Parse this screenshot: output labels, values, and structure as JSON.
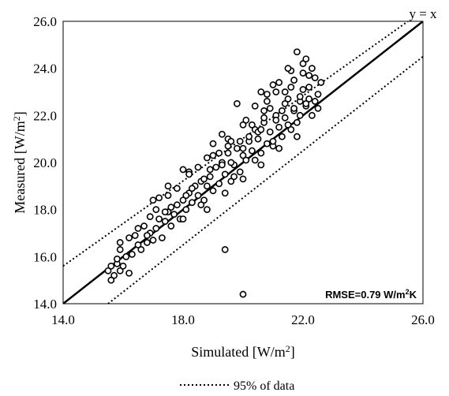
{
  "chart_data": {
    "type": "scatter",
    "xlabel": "Simulated [W/m",
    "xlabel_sup": "2",
    "xlabel_end": "]",
    "ylabel": "Measured [W/m",
    "ylabel_sup": "2",
    "ylabel_end": "]",
    "xlim": [
      14.0,
      26.0
    ],
    "ylim": [
      14.0,
      26.0
    ],
    "xticks": [
      "14.0",
      "18.0",
      "22.0",
      "26.0"
    ],
    "yticks": [
      "14.0",
      "16.0",
      "18.0",
      "20.0",
      "22.0",
      "24.0",
      "26.0"
    ],
    "grid": "none",
    "identity_line": {
      "label": "y = x",
      "from": [
        14.0,
        14.0
      ],
      "to": [
        26.0,
        26.0
      ]
    },
    "band_lines": [
      {
        "from": [
          14.0,
          15.6
        ],
        "to": [
          25.5,
          26.0
        ]
      },
      {
        "from": [
          15.5,
          14.0
        ],
        "to": [
          26.0,
          24.5
        ]
      }
    ],
    "annotation": {
      "text": "RMSE=0.79 W/m",
      "sup": "2",
      "end": "K"
    },
    "legend": {
      "label": "95% of data",
      "placement": "bottom"
    },
    "series": [
      {
        "marker": "open-circle",
        "x": [
          15.5,
          15.6,
          15.7,
          15.8,
          15.9,
          15.6,
          15.8,
          16.0,
          16.1,
          16.2,
          15.9,
          16.3,
          16.5,
          16.4,
          16.6,
          16.8,
          16.9,
          17.0,
          16.7,
          17.1,
          17.2,
          17.3,
          17.4,
          17.5,
          17.6,
          17.0,
          17.7,
          17.8,
          17.9,
          18.0,
          17.5,
          18.1,
          18.2,
          18.3,
          18.4,
          18.0,
          18.5,
          18.6,
          18.7,
          18.8,
          18.2,
          18.9,
          19.0,
          19.1,
          19.2,
          18.6,
          19.3,
          19.4,
          19.5,
          19.6,
          19.0,
          19.7,
          19.8,
          19.9,
          20.0,
          19.3,
          20.1,
          20.2,
          20.3,
          20.4,
          19.6,
          20.5,
          20.6,
          20.7,
          20.8,
          20.0,
          20.9,
          21.0,
          21.1,
          21.2,
          20.4,
          21.3,
          21.4,
          21.5,
          21.6,
          20.8,
          21.7,
          21.8,
          21.9,
          22.0,
          21.2,
          22.1,
          22.2,
          22.3,
          22.4,
          21.6,
          22.5,
          22.6,
          22.0,
          21.5,
          19.4,
          20.0,
          21.8,
          22.1,
          18.0,
          17.2,
          19.8,
          20.6,
          21.0,
          22.3,
          16.2,
          16.9,
          17.6,
          18.3,
          18.9,
          19.5,
          20.2,
          20.7,
          21.4,
          21.9,
          22.4,
          22.2,
          21.7,
          21.1,
          20.5,
          19.9,
          19.2,
          18.5,
          17.8,
          17.1,
          16.5,
          15.9,
          16.8,
          17.4,
          18.1,
          18.7,
          19.3,
          20.0,
          20.6,
          21.3,
          21.9,
          22.5,
          22.0,
          21.4,
          20.8,
          20.1,
          19.5,
          18.8,
          18.2,
          17.5,
          19.0,
          19.6,
          20.3,
          20.9,
          21.6,
          22.2,
          21.8,
          21.2,
          20.6,
          20.0,
          19.4,
          18.8,
          19.7,
          20.4,
          21.0,
          21.5,
          22.1,
          20.7,
          21.1,
          21.7
        ],
        "y": [
          15.4,
          15.6,
          15.2,
          15.7,
          15.4,
          15.0,
          15.9,
          15.6,
          16.0,
          15.3,
          16.3,
          16.1,
          16.5,
          16.9,
          16.3,
          16.6,
          17.0,
          16.7,
          17.3,
          17.2,
          17.6,
          16.8,
          17.5,
          17.9,
          17.3,
          18.4,
          17.8,
          18.2,
          17.6,
          18.4,
          19.0,
          18.0,
          18.7,
          18.3,
          19.0,
          17.6,
          18.6,
          19.2,
          18.4,
          19.0,
          19.6,
          19.4,
          18.8,
          19.8,
          19.1,
          18.2,
          20.0,
          19.5,
          20.4,
          19.2,
          20.8,
          19.9,
          20.6,
          19.6,
          20.3,
          21.2,
          20.1,
          20.9,
          20.5,
          21.4,
          20.0,
          21.0,
          20.4,
          21.7,
          20.8,
          21.6,
          21.3,
          20.7,
          22.0,
          21.5,
          22.4,
          21.1,
          21.9,
          22.7,
          21.4,
          22.9,
          22.2,
          21.7,
          22.6,
          23.1,
          23.4,
          22.4,
          23.2,
          22.0,
          23.6,
          23.9,
          22.9,
          23.4,
          24.2,
          24.0,
          16.3,
          14.4,
          24.7,
          24.4,
          19.7,
          18.5,
          22.5,
          23.0,
          23.3,
          24.0,
          16.8,
          17.7,
          18.1,
          18.9,
          19.7,
          20.7,
          21.1,
          21.9,
          22.5,
          22.8,
          22.6,
          23.7,
          22.3,
          21.8,
          21.3,
          20.9,
          20.4,
          19.8,
          18.9,
          18.0,
          17.2,
          16.6,
          16.9,
          17.9,
          18.6,
          19.3,
          19.9,
          20.6,
          21.4,
          22.2,
          22.0,
          22.3,
          23.8,
          23.0,
          22.6,
          21.8,
          21.0,
          20.2,
          19.5,
          18.6,
          20.3,
          20.9,
          21.6,
          22.3,
          23.2,
          22.7,
          21.1,
          20.6,
          19.9,
          19.3,
          18.7,
          18.0,
          19.4,
          20.1,
          20.9,
          21.6,
          22.5,
          22.2,
          23.0,
          23.5
        ]
      }
    ]
  }
}
